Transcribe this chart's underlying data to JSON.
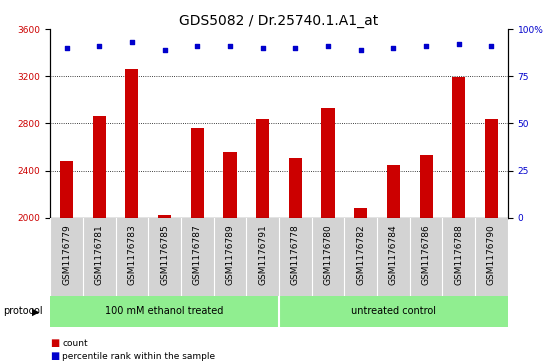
{
  "title": "GDS5082 / Dr.25740.1.A1_at",
  "samples": [
    "GSM1176779",
    "GSM1176781",
    "GSM1176783",
    "GSM1176785",
    "GSM1176787",
    "GSM1176789",
    "GSM1176791",
    "GSM1176778",
    "GSM1176780",
    "GSM1176782",
    "GSM1176784",
    "GSM1176786",
    "GSM1176788",
    "GSM1176790"
  ],
  "counts": [
    2480,
    2860,
    3260,
    2025,
    2760,
    2560,
    2840,
    2510,
    2930,
    2080,
    2450,
    2530,
    3195,
    2840
  ],
  "percentiles": [
    90,
    91,
    93,
    89,
    91,
    91,
    90,
    90,
    91,
    89,
    90,
    91,
    92,
    91
  ],
  "ylim_left": [
    2000,
    3600
  ],
  "ylim_right": [
    0,
    100
  ],
  "yticks_left": [
    2000,
    2400,
    2800,
    3200,
    3600
  ],
  "yticks_right": [
    0,
    25,
    50,
    75,
    100
  ],
  "bar_color": "#cc0000",
  "dot_color": "#0000cc",
  "group1_label": "100 mM ethanol treated",
  "group2_label": "untreated control",
  "group1_count": 7,
  "group2_count": 7,
  "protocol_label": "protocol",
  "legend_count_label": "count",
  "legend_pct_label": "percentile rank within the sample",
  "ax_bg": "#ffffff",
  "tick_label_area_bg": "#d3d3d3",
  "group_color": "#90ee90",
  "title_fontsize": 10,
  "tick_fontsize": 6.5,
  "label_fontsize": 7.5,
  "bar_width": 0.4
}
